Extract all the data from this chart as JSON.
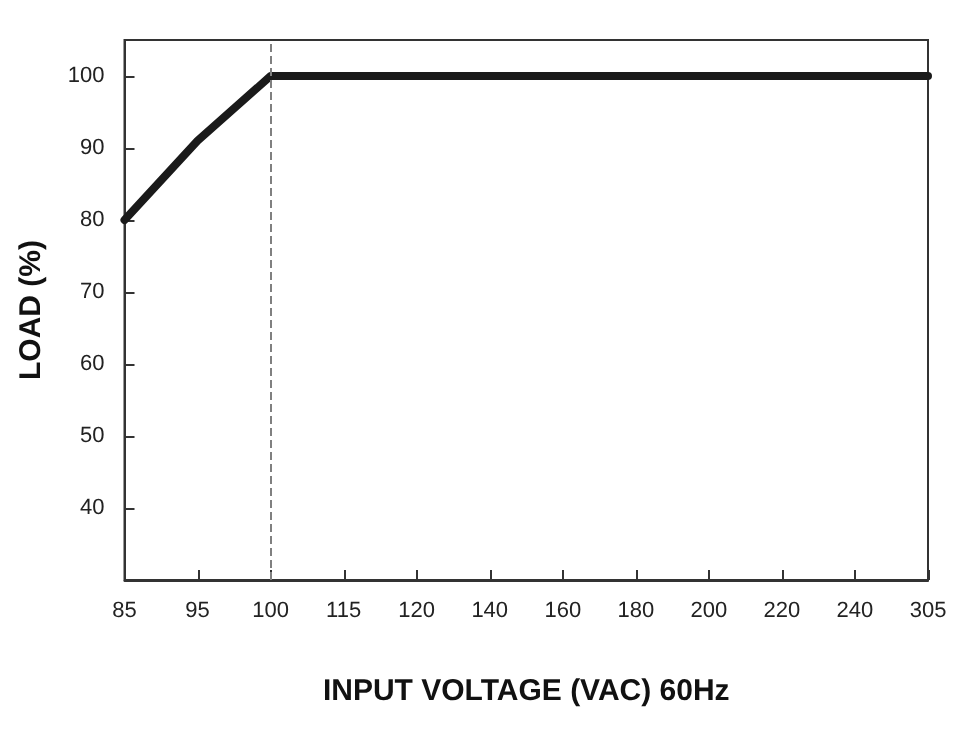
{
  "chart_data": {
    "type": "line",
    "xlabel": "INPUT VOLTAGE (VAC) 60Hz",
    "ylabel": "LOAD (%)",
    "categories": [
      "85",
      "95",
      "100",
      "115",
      "120",
      "140",
      "160",
      "180",
      "200",
      "220",
      "240",
      "305"
    ],
    "series": [
      {
        "color": "#1a1a1a",
        "values": [
          80,
          91,
          100,
          100,
          100,
          100,
          100,
          100,
          100,
          100,
          100,
          100
        ]
      }
    ],
    "ylim": [
      30,
      105
    ],
    "yticks": [
      40,
      50,
      60,
      70,
      80,
      90,
      100
    ],
    "ref_lines": [
      {
        "axis": "x",
        "value": "100",
        "color": "#808080",
        "line_style": "dashed"
      }
    ],
    "marker": "none",
    "line_style": "solid"
  }
}
